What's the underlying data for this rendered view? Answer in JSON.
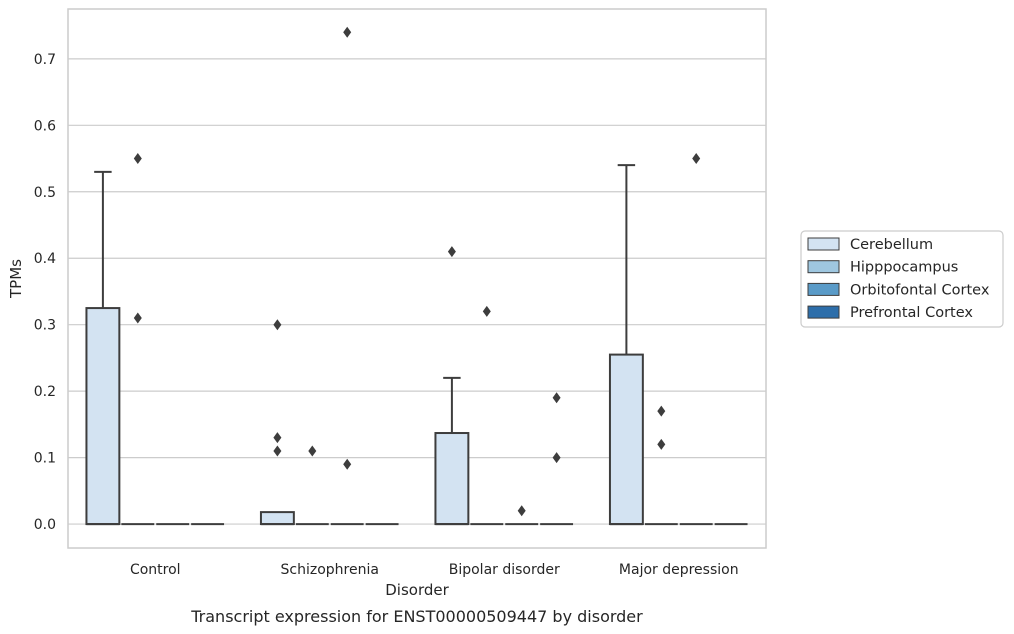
{
  "chart_data": {
    "type": "box",
    "title": "",
    "caption": "Transcript expression for ENST00000509447 by disorder",
    "xlabel": "Disorder",
    "ylabel": "TPMs",
    "ylim": [
      -0.036,
      0.775
    ],
    "yticks": [
      "0.0",
      "0.1",
      "0.2",
      "0.3",
      "0.4",
      "0.5",
      "0.6",
      "0.7"
    ],
    "ytick_values": [
      0.0,
      0.1,
      0.2,
      0.3,
      0.4,
      0.5,
      0.6,
      0.7
    ],
    "grid": "horizontal",
    "legend_position": "right",
    "categories": [
      "Control",
      "Schizophrenia",
      "Bipolar disorder",
      "Major depression"
    ],
    "series": [
      {
        "name": "Cerebellum",
        "color": "#d3e3f2",
        "boxes": [
          {
            "q1": 0.0,
            "median": 0.0,
            "q3": 0.325,
            "whisker_low": 0.0,
            "whisker_high": 0.53,
            "outliers": []
          },
          {
            "q1": 0.0,
            "median": 0.0,
            "q3": 0.018,
            "whisker_low": 0.0,
            "whisker_high": 0.018,
            "outliers": [
              0.3,
              0.13,
              0.11
            ]
          },
          {
            "q1": 0.0,
            "median": 0.0,
            "q3": 0.137,
            "whisker_low": 0.0,
            "whisker_high": 0.22,
            "outliers": [
              0.41
            ]
          },
          {
            "q1": 0.0,
            "median": 0.0,
            "q3": 0.255,
            "whisker_low": 0.0,
            "whisker_high": 0.54,
            "outliers": []
          }
        ]
      },
      {
        "name": "Hipppocampus",
        "color": "#9fc7e0",
        "boxes": [
          {
            "q1": 0.0,
            "median": 0.0,
            "q3": 0.0,
            "whisker_low": 0.0,
            "whisker_high": 0.0,
            "outliers": [
              0.55,
              0.31
            ]
          },
          {
            "q1": 0.0,
            "median": 0.0,
            "q3": 0.0,
            "whisker_low": 0.0,
            "whisker_high": 0.0,
            "outliers": [
              0.11
            ]
          },
          {
            "q1": 0.0,
            "median": 0.0,
            "q3": 0.0,
            "whisker_low": 0.0,
            "whisker_high": 0.0,
            "outliers": [
              0.32
            ]
          },
          {
            "q1": 0.0,
            "median": 0.0,
            "q3": 0.0,
            "whisker_low": 0.0,
            "whisker_high": 0.0,
            "outliers": [
              0.17,
              0.12
            ]
          }
        ]
      },
      {
        "name": "Orbitofontal Cortex",
        "color": "#5a9bc8",
        "boxes": [
          {
            "q1": 0.0,
            "median": 0.0,
            "q3": 0.0,
            "whisker_low": 0.0,
            "whisker_high": 0.0,
            "outliers": []
          },
          {
            "q1": 0.0,
            "median": 0.0,
            "q3": 0.0,
            "whisker_low": 0.0,
            "whisker_high": 0.0,
            "outliers": [
              0.74,
              0.09
            ]
          },
          {
            "q1": 0.0,
            "median": 0.0,
            "q3": 0.0,
            "whisker_low": 0.0,
            "whisker_high": 0.0,
            "outliers": [
              0.02
            ]
          },
          {
            "q1": 0.0,
            "median": 0.0,
            "q3": 0.0,
            "whisker_low": 0.0,
            "whisker_high": 0.0,
            "outliers": [
              0.55
            ]
          }
        ]
      },
      {
        "name": "Prefrontal Cortex",
        "color": "#2d6eaa",
        "boxes": [
          {
            "q1": 0.0,
            "median": 0.0,
            "q3": 0.0,
            "whisker_low": 0.0,
            "whisker_high": 0.0,
            "outliers": []
          },
          {
            "q1": 0.0,
            "median": 0.0,
            "q3": 0.0,
            "whisker_low": 0.0,
            "whisker_high": 0.0,
            "outliers": []
          },
          {
            "q1": 0.0,
            "median": 0.0,
            "q3": 0.0,
            "whisker_low": 0.0,
            "whisker_high": 0.0,
            "outliers": [
              0.19,
              0.1
            ]
          },
          {
            "q1": 0.0,
            "median": 0.0,
            "q3": 0.0,
            "whisker_low": 0.0,
            "whisker_high": 0.0,
            "outliers": []
          }
        ]
      }
    ]
  }
}
